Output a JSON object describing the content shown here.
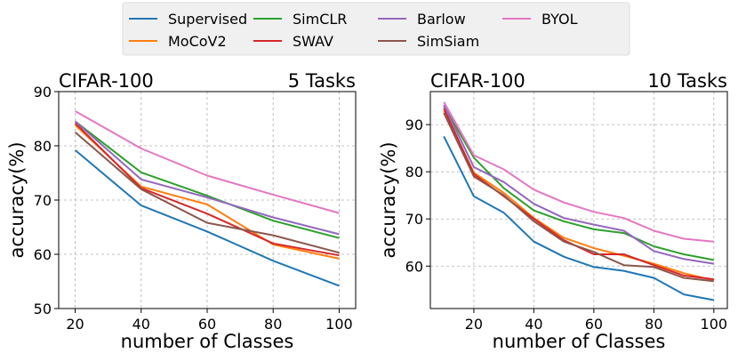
{
  "legend": {
    "entries": [
      {
        "name": "Supervised",
        "color": "#1f77b4"
      },
      {
        "name": "MoCoV2",
        "color": "#ff7f0e"
      },
      {
        "name": "SimCLR",
        "color": "#2ca02c"
      },
      {
        "name": "SWAV",
        "color": "#d62728"
      },
      {
        "name": "Barlow",
        "color": "#9467bd"
      },
      {
        "name": "SimSiam",
        "color": "#8c564b"
      },
      {
        "name": "BYOL",
        "color": "#e377c2"
      }
    ]
  },
  "chart_data": [
    {
      "type": "line",
      "title": "CIFAR-100",
      "title_right": "5 Tasks",
      "xlabel": "number of Classes",
      "ylabel": "accuracy(%)",
      "xlim": [
        15,
        105
      ],
      "ylim": [
        50,
        90
      ],
      "xticks": [
        20,
        40,
        60,
        80,
        100
      ],
      "yticks": [
        50,
        60,
        70,
        80,
        90
      ],
      "grid": true,
      "x": [
        20,
        40,
        60,
        80,
        100
      ],
      "series": [
        {
          "name": "Supervised",
          "color": "#1f77b4",
          "values": [
            79.2,
            69.0,
            64.2,
            58.8,
            54.2
          ]
        },
        {
          "name": "MoCoV2",
          "color": "#ff7f0e",
          "values": [
            83.8,
            72.5,
            69.2,
            61.8,
            59.2
          ]
        },
        {
          "name": "SimCLR",
          "color": "#2ca02c",
          "values": [
            84.5,
            75.1,
            70.8,
            66.2,
            63.0
          ]
        },
        {
          "name": "SWAV",
          "color": "#d62728",
          "values": [
            84.2,
            72.2,
            67.5,
            62.0,
            59.8
          ]
        },
        {
          "name": "Barlow",
          "color": "#9467bd",
          "values": [
            84.5,
            73.8,
            70.5,
            66.8,
            63.7
          ]
        },
        {
          "name": "SimSiam",
          "color": "#8c564b",
          "values": [
            82.5,
            72.0,
            65.8,
            63.5,
            60.3
          ]
        },
        {
          "name": "BYOL",
          "color": "#e377c2",
          "values": [
            86.4,
            79.5,
            74.5,
            71.0,
            67.6
          ]
        }
      ]
    },
    {
      "type": "line",
      "title": "CIFAR-100",
      "title_right": "10 Tasks",
      "xlabel": "number of Classes",
      "ylabel": "accuracy(%)",
      "xlim": [
        5.5,
        104.5
      ],
      "ylim": [
        51,
        97
      ],
      "xticks": [
        20,
        40,
        60,
        80,
        100
      ],
      "yticks": [
        60,
        70,
        80,
        90
      ],
      "grid": true,
      "x": [
        10,
        20,
        30,
        40,
        50,
        60,
        70,
        80,
        90,
        100
      ],
      "series": [
        {
          "name": "Supervised",
          "color": "#1f77b4",
          "values": [
            87.5,
            74.8,
            71.3,
            65.2,
            62.0,
            59.8,
            59.0,
            57.5,
            54.0,
            52.8
          ]
        },
        {
          "name": "MoCoV2",
          "color": "#ff7f0e",
          "values": [
            93.0,
            79.8,
            75.5,
            70.2,
            66.0,
            63.8,
            62.2,
            60.5,
            58.5,
            57.0
          ]
        },
        {
          "name": "SimCLR",
          "color": "#2ca02c",
          "values": [
            94.0,
            83.0,
            76.5,
            71.8,
            69.5,
            67.8,
            67.0,
            64.2,
            62.5,
            61.3
          ]
        },
        {
          "name": "SWAV",
          "color": "#d62728",
          "values": [
            93.5,
            79.5,
            74.8,
            70.0,
            65.5,
            62.5,
            62.5,
            60.2,
            58.0,
            57.2
          ]
        },
        {
          "name": "Barlow",
          "color": "#9467bd",
          "values": [
            94.2,
            81.0,
            77.8,
            73.2,
            70.2,
            68.8,
            67.5,
            63.2,
            61.5,
            60.5
          ]
        },
        {
          "name": "SimSiam",
          "color": "#8c564b",
          "values": [
            92.5,
            79.0,
            75.0,
            69.5,
            65.2,
            63.0,
            60.2,
            59.8,
            57.5,
            56.8
          ]
        },
        {
          "name": "BYOL",
          "color": "#e377c2",
          "values": [
            94.8,
            83.5,
            80.5,
            76.2,
            73.5,
            71.5,
            70.2,
            67.5,
            65.8,
            65.2
          ]
        }
      ]
    }
  ]
}
